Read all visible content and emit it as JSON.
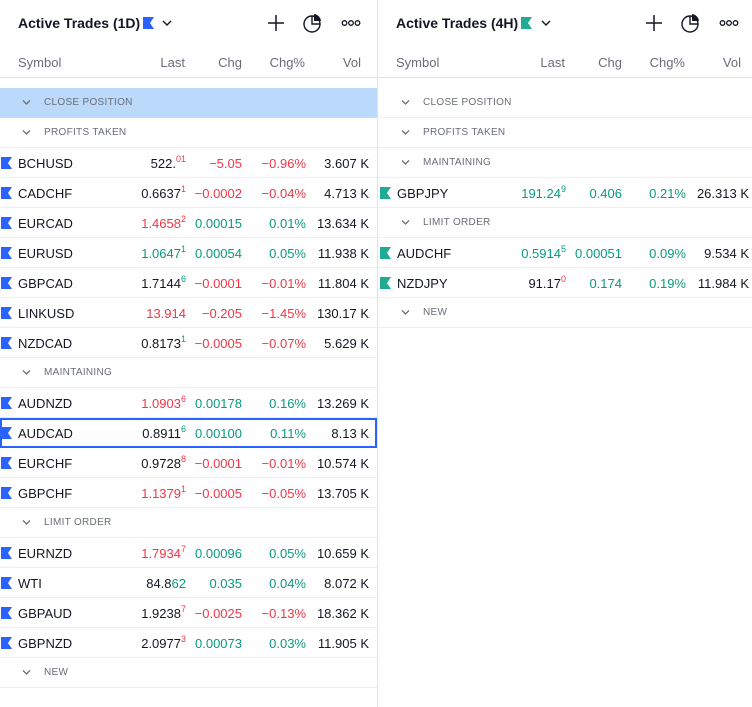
{
  "colors": {
    "up": "#089981",
    "down": "#f23645",
    "neutral": "#131722",
    "flag_left": "#2962ff",
    "flag_right": "#22ab94",
    "selection": "#bbd9fb",
    "focus": "#2962ff"
  },
  "icons": {
    "add": "plus-icon",
    "chart": "pie-chart-icon",
    "more": "more-horizontal-icon",
    "menu": "chevron-down-icon",
    "section": "chevron-down-icon"
  },
  "columns": {
    "symbol": "Symbol",
    "last": "Last",
    "chg": "Chg",
    "chgp": "Chg%",
    "vol": "Vol"
  },
  "left": {
    "title": "Active Trades (1D)",
    "sections": [
      {
        "label": "CLOSE POSITION",
        "selected": true,
        "rows": []
      },
      {
        "label": "PROFITS TAKEN",
        "rows": [
          {
            "symbol": "BCHUSD",
            "last_main": "522.",
            "last_sup": "01",
            "last_sup_color": "down",
            "chg": "−5.05",
            "chgp": "−0.96%",
            "vol": "3.607 K",
            "dir": "down"
          },
          {
            "symbol": "CADCHF",
            "last_main": "0.6637",
            "last_sup": "1",
            "last_sup_color": "down",
            "chg": "−0.0002",
            "chgp": "−0.04%",
            "vol": "4.713 K",
            "dir": "down"
          },
          {
            "symbol": "EURCAD",
            "last_main": "1.4658",
            "last_sup": "2",
            "last_main_color": "down",
            "last_sup_color": "down",
            "chg": "0.00015",
            "chgp": "0.01%",
            "vol": "13.634 K",
            "dir": "up"
          },
          {
            "symbol": "EURUSD",
            "last_main": "1.0647",
            "last_sup": "1",
            "last_main_color": "up",
            "last_sup_color": "up",
            "chg": "0.00054",
            "chgp": "0.05%",
            "vol": "11.938 K",
            "dir": "up"
          },
          {
            "symbol": "GBPCAD",
            "last_main": "1.7144",
            "last_sup": "6",
            "last_sup_color": "up",
            "chg": "−0.0001",
            "chgp": "−0.01%",
            "vol": "11.804 K",
            "dir": "down"
          },
          {
            "symbol": "LINKUSD",
            "last_main": "13.914",
            "last_sup": "",
            "last_main_color": "down",
            "chg": "−0.205",
            "chgp": "−1.45%",
            "vol": "130.17 K",
            "dir": "down"
          },
          {
            "symbol": "NZDCAD",
            "last_main": "0.8173",
            "last_sup": "1",
            "last_sup_color": "up",
            "chg": "−0.0005",
            "chgp": "−0.07%",
            "vol": "5.629 K",
            "dir": "down"
          }
        ]
      },
      {
        "label": "MAINTAINING",
        "rows": [
          {
            "symbol": "AUDNZD",
            "last_main": "1.0903",
            "last_sup": "6",
            "last_main_color": "down",
            "last_sup_color": "down",
            "chg": "0.00178",
            "chgp": "0.16%",
            "vol": "13.269 K",
            "dir": "up"
          },
          {
            "symbol": "AUDCAD",
            "last_main": "0.8911",
            "last_sup": "6",
            "last_sup_color": "up",
            "chg": "0.00100",
            "chgp": "0.11%",
            "vol": "8.13 K",
            "dir": "up",
            "focused": true
          },
          {
            "symbol": "EURCHF",
            "last_main": "0.9728",
            "last_sup": "8",
            "last_sup_color": "down",
            "chg": "−0.0001",
            "chgp": "−0.01%",
            "vol": "10.574 K",
            "dir": "down"
          },
          {
            "symbol": "GBPCHF",
            "last_main": "1.1379",
            "last_sup": "1",
            "last_main_color": "down",
            "last_sup_color": "down",
            "chg": "−0.0005",
            "chgp": "−0.05%",
            "vol": "13.705 K",
            "dir": "down"
          }
        ]
      },
      {
        "label": "LIMIT ORDER",
        "rows": [
          {
            "symbol": "EURNZD",
            "last_main": "1.7934",
            "last_sup": "7",
            "last_main_color": "down",
            "last_sup_color": "down",
            "chg": "0.00096",
            "chgp": "0.05%",
            "vol": "10.659 K",
            "dir": "up"
          },
          {
            "symbol": "WTI",
            "last_main": "84.8",
            "last_sup": "62",
            "last_sup_color": "up",
            "last_sup_inline": true,
            "chg": "0.035",
            "chgp": "0.04%",
            "vol": "8.072 K",
            "dir": "up"
          },
          {
            "symbol": "GBPAUD",
            "last_main": "1.9238",
            "last_sup": "7",
            "last_sup_color": "down",
            "chg": "−0.0025",
            "chgp": "−0.13%",
            "vol": "18.362 K",
            "dir": "down"
          },
          {
            "symbol": "GBPNZD",
            "last_main": "2.0977",
            "last_sup": "3",
            "last_sup_color": "down",
            "chg": "0.00073",
            "chgp": "0.03%",
            "vol": "11.905 K",
            "dir": "up"
          }
        ]
      },
      {
        "label": "NEW",
        "rows": []
      }
    ]
  },
  "right": {
    "title": "Active Trades (4H)",
    "sections": [
      {
        "label": "CLOSE POSITION",
        "rows": []
      },
      {
        "label": "PROFITS TAKEN",
        "rows": []
      },
      {
        "label": "MAINTAINING",
        "rows": [
          {
            "symbol": "GBPJPY",
            "last_main": "191.24",
            "last_sup": "9",
            "last_main_color": "up",
            "last_sup_color": "up",
            "chg": "0.406",
            "chgp": "0.21%",
            "vol": "26.313 K",
            "dir": "up"
          }
        ]
      },
      {
        "label": "LIMIT ORDER",
        "rows": [
          {
            "symbol": "AUDCHF",
            "last_main": "0.5914",
            "last_sup": "5",
            "last_main_color": "up",
            "last_sup_color": "up",
            "chg": "0.00051",
            "chgp": "0.09%",
            "vol": "9.534 K",
            "dir": "up"
          },
          {
            "symbol": "NZDJPY",
            "last_main": "91.17",
            "last_sup": "0",
            "last_sup_color": "down",
            "chg": "0.174",
            "chgp": "0.19%",
            "vol": "11.984 K",
            "dir": "up"
          }
        ]
      },
      {
        "label": "NEW",
        "rows": []
      }
    ]
  }
}
